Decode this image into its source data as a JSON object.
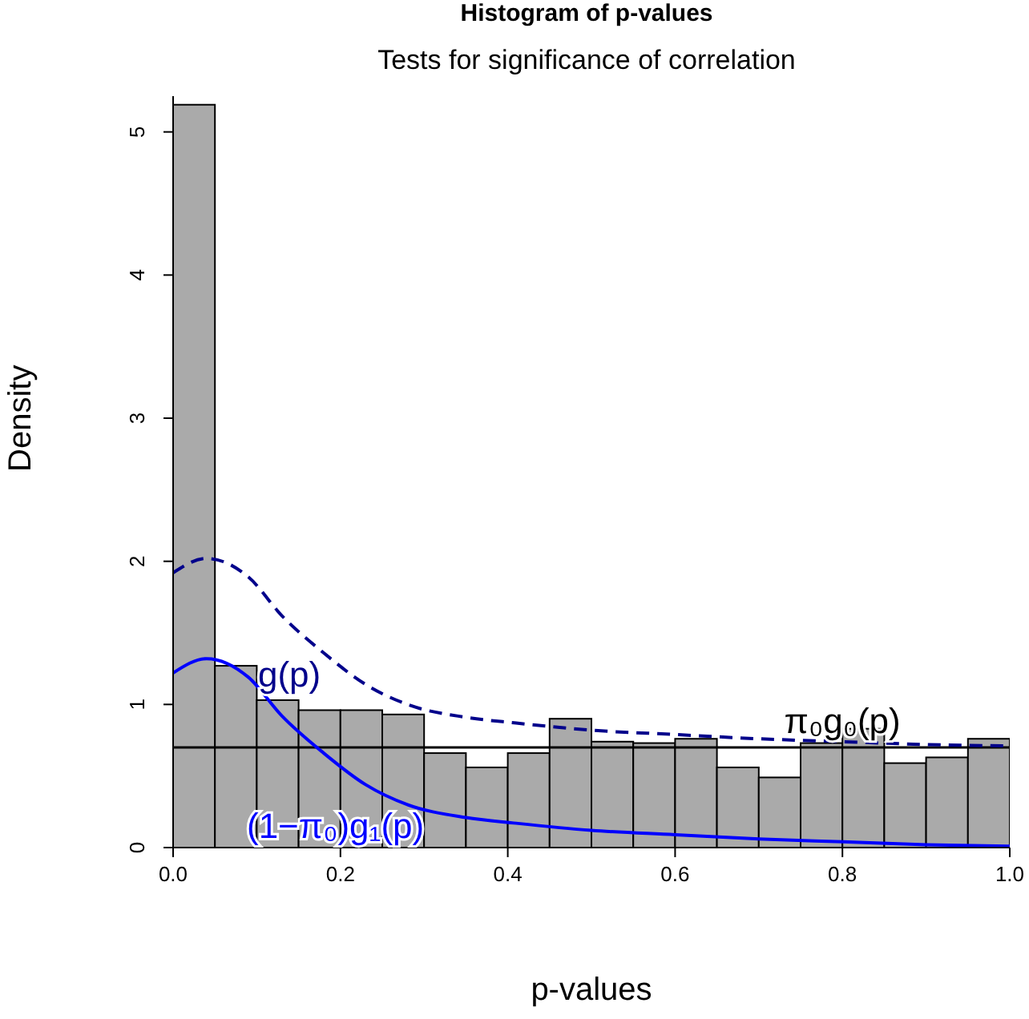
{
  "chart_data": {
    "type": "histogram",
    "title": "Histogram of p-values",
    "subtitle": "Tests for significance of correlation",
    "xlabel": "p-values",
    "ylabel": "Density",
    "bins": [
      0,
      0.05,
      0.1,
      0.15,
      0.2,
      0.25,
      0.3,
      0.35,
      0.4,
      0.45,
      0.5,
      0.55,
      0.6,
      0.65,
      0.7,
      0.75,
      0.8,
      0.85,
      0.9,
      0.95,
      1.0
    ],
    "values": [
      5.19,
      1.27,
      1.03,
      0.96,
      0.96,
      0.93,
      0.66,
      0.56,
      0.66,
      0.9,
      0.74,
      0.73,
      0.76,
      0.56,
      0.49,
      0.73,
      0.83,
      0.59,
      0.63,
      0.76
    ],
    "color": "#aaaaaa",
    "series": [
      {
        "type": "line",
        "color": "#0000ff",
        "line_style": "solid",
        "x": [
          0,
          0.04,
          0.09,
          0.13,
          0.18,
          0.23,
          0.28,
          0.35,
          0.41,
          0.5,
          0.6,
          0.7,
          0.8,
          0.9,
          1.0
        ],
        "values": [
          1.22,
          1.32,
          1.19,
          0.92,
          0.66,
          0.44,
          0.3,
          0.21,
          0.17,
          0.12,
          0.09,
          0.06,
          0.04,
          0.02,
          0.01
        ]
      },
      {
        "type": "line",
        "color": "#00008b",
        "line_style": "dashed",
        "x": [
          0,
          0.04,
          0.09,
          0.13,
          0.18,
          0.23,
          0.28,
          0.35,
          0.41,
          0.5,
          0.6,
          0.7,
          0.8,
          0.9,
          1.0
        ],
        "values": [
          1.92,
          2.02,
          1.89,
          1.62,
          1.36,
          1.14,
          1.0,
          0.91,
          0.87,
          0.82,
          0.79,
          0.76,
          0.74,
          0.72,
          0.71
        ]
      }
    ],
    "ref_lines": [
      {
        "axis": "y",
        "value": 0.7,
        "color": "#000000"
      }
    ],
    "annotations": [
      {
        "text": "g(p)",
        "x": 0.09,
        "y": 1.19
      },
      {
        "text": "(1−π₀)g₁(p)",
        "x": 0.3,
        "y": 0.27
      },
      {
        "text": "π₀g₀(p)",
        "x": 0.8,
        "y": 0.7
      }
    ],
    "xlim": [
      0,
      1
    ],
    "ylim": [
      0,
      5.25
    ],
    "xticks": [
      {
        "value": 0,
        "label": "0.0"
      },
      {
        "value": 0.2,
        "label": "0.2"
      },
      {
        "value": 0.4,
        "label": "0.4"
      },
      {
        "value": 0.6,
        "label": "0.6"
      },
      {
        "value": 0.8,
        "label": "0.8"
      },
      {
        "value": 1,
        "label": "1.0"
      }
    ],
    "yticks": [
      0,
      1,
      2,
      3,
      4,
      5
    ],
    "grid": false
  }
}
